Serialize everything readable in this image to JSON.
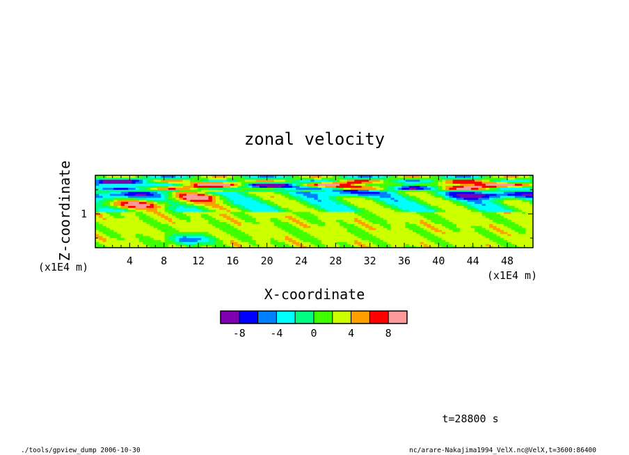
{
  "chart_data": {
    "type": "heatmap",
    "title": "zonal velocity",
    "xlabel": "X-coordinate",
    "ylabel": "Z-coordinate",
    "x_unit": "(x1E4 m)",
    "z_unit": "(x1E4 m)",
    "x_range": [
      0,
      51
    ],
    "z_range": [
      0.3,
      1.8
    ],
    "x_ticks": [
      "4",
      "8",
      "12",
      "16",
      "20",
      "24",
      "28",
      "32",
      "36",
      "40",
      "44",
      "48"
    ],
    "z_ticks": [
      "1"
    ],
    "colorbar": {
      "levels": [
        -10,
        -8,
        -6,
        -4,
        -2,
        0,
        2,
        4,
        6,
        8,
        10
      ],
      "tick_labels": [
        "-8",
        "-4",
        "0",
        "4",
        "8"
      ],
      "colors": [
        "#7f00b2",
        "#0000ff",
        "#0080ff",
        "#00ffff",
        "#00ff80",
        "#40ff00",
        "#ccff00",
        "#ffa000",
        "#ff0000",
        "#ff9999"
      ]
    },
    "field_features": [
      {
        "x": [
          0,
          5
        ],
        "z": [
          1.6,
          1.7
        ],
        "value": -10
      },
      {
        "x": [
          10,
          18
        ],
        "z": [
          1.55,
          1.65
        ],
        "value": 9
      },
      {
        "x": [
          17,
          24
        ],
        "z": [
          1.55,
          1.62
        ],
        "value": -10
      },
      {
        "x": [
          26,
          33
        ],
        "z": [
          1.55,
          1.65
        ],
        "value": 9
      },
      {
        "x": [
          35,
          40
        ],
        "z": [
          1.55,
          1.62
        ],
        "value": -9
      },
      {
        "x": [
          39,
          48
        ],
        "z": [
          1.55,
          1.65
        ],
        "value": 10
      },
      {
        "x": [
          0,
          6
        ],
        "z": [
          1.35,
          1.45
        ],
        "value": -9
      },
      {
        "x": [
          9,
          14
        ],
        "z": [
          1.3,
          1.4
        ],
        "value": 8
      },
      {
        "x": [
          27,
          32
        ],
        "z": [
          1.4,
          1.5
        ],
        "value": -9
      },
      {
        "x": [
          42,
          51
        ],
        "z": [
          1.35,
          1.45
        ],
        "value": -10
      },
      {
        "x": [
          0,
          10
        ],
        "z": [
          1.15,
          1.25
        ],
        "value": 6
      },
      {
        "x": [
          9,
          13
        ],
        "z": [
          0.4,
          0.55
        ],
        "value": -8
      }
    ]
  },
  "footer": {
    "time_label": "t=28800 s",
    "left_note": "./tools/gpview_dump  2006-10-30",
    "right_note": "nc/arare-Nakajima1994_VelX.nc@VelX,t=3600:86400"
  }
}
